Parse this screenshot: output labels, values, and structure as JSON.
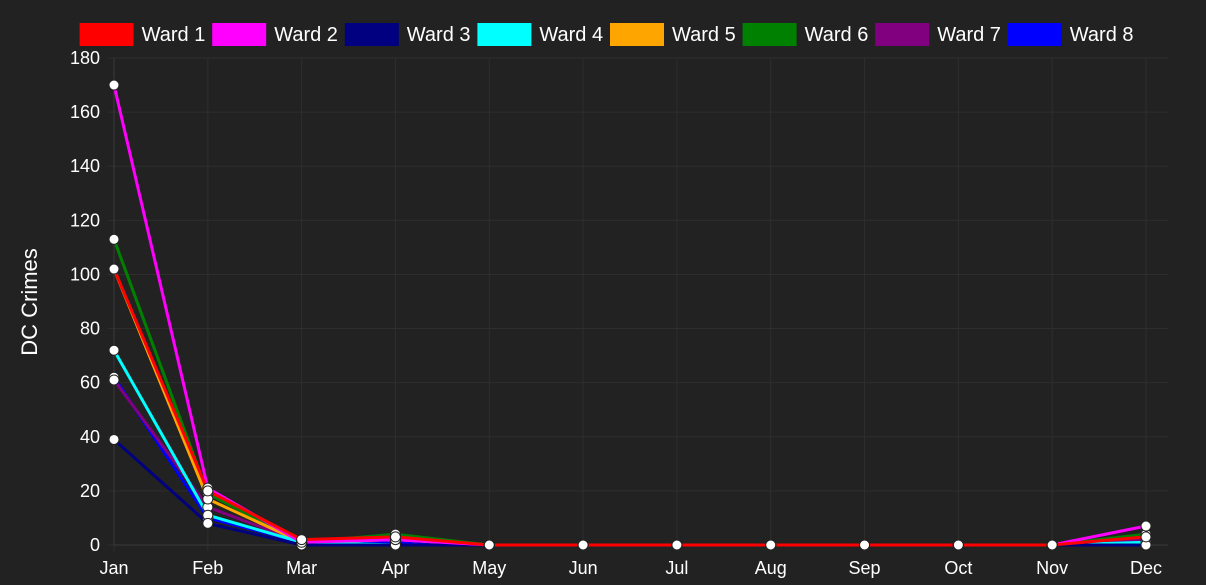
{
  "chart_data": {
    "type": "line",
    "categories": [
      "Jan",
      "Feb",
      "Mar",
      "Apr",
      "May",
      "Jun",
      "Jul",
      "Aug",
      "Sep",
      "Oct",
      "Nov",
      "Dec"
    ],
    "ylabel": "DC Crimes",
    "ylim": [
      0,
      180
    ],
    "yticks": [
      0,
      20,
      40,
      60,
      80,
      100,
      120,
      140,
      160,
      180
    ],
    "grid": true,
    "legend": "top",
    "series": [
      {
        "name": "Ward 1",
        "color": "#ff0000",
        "values": [
          102,
          20,
          2,
          3,
          0,
          0,
          0,
          0,
          0,
          0,
          0,
          3
        ]
      },
      {
        "name": "Ward 2",
        "color": "#ff00ff",
        "values": [
          170,
          21,
          1,
          2,
          0,
          0,
          0,
          0,
          0,
          0,
          0,
          7
        ]
      },
      {
        "name": "Ward 3",
        "color": "#000080",
        "values": [
          39,
          8,
          0,
          0,
          0,
          0,
          0,
          0,
          0,
          0,
          0,
          0
        ]
      },
      {
        "name": "Ward 4",
        "color": "#00ffff",
        "values": [
          72,
          11,
          1,
          0,
          0,
          0,
          0,
          0,
          0,
          0,
          0,
          1
        ]
      },
      {
        "name": "Ward 5",
        "color": "#ffa500",
        "values": [
          102,
          17,
          1,
          2,
          0,
          0,
          0,
          0,
          0,
          0,
          0,
          0
        ]
      },
      {
        "name": "Ward 6",
        "color": "#008000",
        "values": [
          113,
          19,
          1,
          4,
          0,
          0,
          0,
          0,
          0,
          0,
          0,
          4
        ]
      },
      {
        "name": "Ward 7",
        "color": "#800080",
        "values": [
          61,
          14,
          1,
          2,
          0,
          0,
          0,
          0,
          0,
          0,
          0,
          2
        ]
      },
      {
        "name": "Ward 8",
        "color": "#0000ff",
        "values": [
          62,
          10,
          1,
          1,
          0,
          0,
          0,
          0,
          0,
          0,
          0,
          2
        ]
      }
    ]
  }
}
